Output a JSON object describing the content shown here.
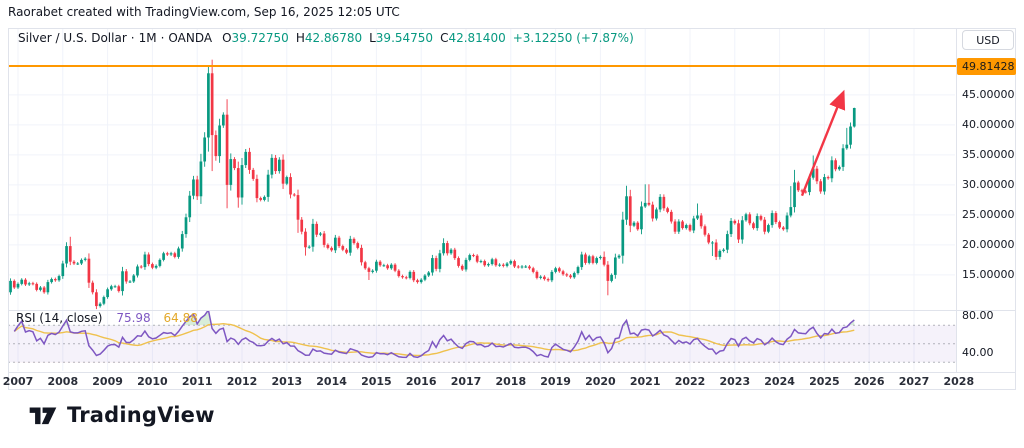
{
  "attribution": "Raorabet created with TradingView.com, Sep 16, 2025 12:05 UTC",
  "header": {
    "symbol": "Silver / U.S. Dollar",
    "dot": "·",
    "interval": "1M",
    "exchange": "OANDA",
    "labels": {
      "o": "O",
      "h": "H",
      "l": "L",
      "c": "C"
    },
    "o": "39.72750",
    "h": "42.86780",
    "l": "39.54750",
    "c": "42.81400",
    "change": "+3.12250 (+7.87%)"
  },
  "price_axis": {
    "currency": "USD",
    "price_line_label": "49.81428",
    "ticks": [
      {
        "label": "45.00000",
        "value": 45
      },
      {
        "label": "40.00000",
        "value": 40
      },
      {
        "label": "35.00000",
        "value": 35
      },
      {
        "label": "30.00000",
        "value": 30
      },
      {
        "label": "25.00000",
        "value": 25
      },
      {
        "label": "20.00000",
        "value": 20
      },
      {
        "label": "15.00000",
        "value": 15
      }
    ]
  },
  "rsi_pane": {
    "title": "RSI (14, close)",
    "value": "75.98",
    "ma_value": "64.88",
    "ticks": [
      {
        "label": "80.00",
        "value": 80
      },
      {
        "label": "40.00",
        "value": 40
      }
    ],
    "bands": {
      "upper": 70,
      "middle": 50,
      "lower": 30
    }
  },
  "time_axis": {
    "years": [
      "2007",
      "2008",
      "2009",
      "2010",
      "2011",
      "2012",
      "2013",
      "2014",
      "2015",
      "2016",
      "2017",
      "2018",
      "2019",
      "2020",
      "2021",
      "2022",
      "2023",
      "2024",
      "2025",
      "2026",
      "2027",
      "2028"
    ]
  },
  "logo_text": "TradingView",
  "colors": {
    "up": "#089981",
    "down": "#f23645",
    "price_line": "#ff9800",
    "rsi_line": "#7e57c2",
    "rsi_ma_line": "#efc14d",
    "band_fill": "rgba(126,87,194,0.08)",
    "band_dash": "rgba(120,123,134,0.55)",
    "overbought_fill": "rgba(76,175,80,0.22)",
    "oversold_fill": "rgba(242,54,69,0.18)",
    "grid": "#f0f3fa",
    "frame": "#e0e3eb",
    "arrow": "#f23645"
  },
  "chart_data": {
    "type": "candlestick",
    "title": "Silver / U.S. Dollar, 1M, OANDA",
    "timeframe": "1M",
    "x_range": [
      "2006-10",
      "2028-12"
    ],
    "price_ylim": [
      9,
      56
    ],
    "rsi_ylim": [
      20,
      87
    ],
    "price_line_value": 49.81428,
    "series_start": "2006-10",
    "monthly_closes": [
      12.1,
      14.0,
      12.9,
      13.5,
      14.2,
      13.4,
      13.6,
      13.5,
      12.5,
      12.9,
      12.1,
      13.8,
      14.3,
      14.1,
      14.8,
      16.9,
      19.8,
      17.2,
      16.9,
      16.9,
      17.5,
      17.7,
      13.7,
      12.1,
      9.8,
      10.2,
      11.3,
      12.6,
      13.1,
      13.1,
      12.3,
      15.6,
      13.9,
      13.9,
      14.9,
      16.4,
      16.3,
      18.4,
      16.8,
      16.2,
      16.5,
      17.5,
      18.6,
      18.4,
      18.6,
      18.0,
      19.4,
      21.8,
      24.6,
      28.2,
      30.9,
      28.1,
      33.9,
      37.9,
      48.6,
      38.3,
      34.8,
      39.9,
      41.7,
      30.0,
      34.3,
      32.8,
      27.9,
      33.3,
      35.5,
      32.5,
      31.0,
      27.8,
      27.5,
      28.0,
      31.7,
      34.5,
      32.3,
      34.2,
      30.2,
      31.3,
      28.4,
      28.3,
      24.2,
      22.2,
      19.6,
      19.7,
      23.5,
      21.7,
      21.9,
      20.0,
      19.5,
      19.1,
      21.2,
      19.8,
      19.2,
      18.7,
      21.0,
      20.3,
      19.5,
      17.1,
      16.1,
      15.5,
      15.7,
      17.2,
      16.6,
      16.6,
      16.1,
      16.7,
      15.7,
      14.8,
      14.6,
      14.5,
      15.5,
      14.1,
      13.8,
      14.2,
      14.9,
      15.4,
      17.8,
      16.0,
      18.6,
      20.3,
      18.6,
      19.2,
      17.8,
      16.5,
      15.9,
      17.5,
      18.3,
      18.2,
      17.2,
      17.3,
      16.6,
      16.8,
      17.6,
      16.6,
      16.7,
      16.5,
      16.9,
      17.3,
      16.4,
      16.3,
      16.4,
      16.4,
      16.1,
      15.5,
      14.5,
      14.7,
      14.3,
      14.1,
      15.5,
      16.1,
      15.6,
      15.1,
      14.9,
      14.6,
      15.3,
      16.3,
      18.4,
      17.0,
      18.1,
      17.0,
      17.8,
      18.0,
      16.7,
      14.0,
      15.0,
      17.9,
      18.2,
      24.2,
      28.1,
      23.2,
      23.7,
      22.6,
      26.4,
      27.0,
      26.7,
      24.4,
      25.9,
      28.0,
      26.1,
      25.5,
      23.9,
      22.2,
      23.9,
      22.8,
      23.3,
      22.4,
      24.4,
      24.9,
      23.1,
      21.7,
      20.4,
      20.4,
      18.0,
      19.0,
      19.2,
      21.8,
      24.0,
      23.6,
      20.9,
      24.1,
      25.1,
      23.6,
      22.8,
      24.8,
      24.2,
      22.2,
      23.3,
      25.3,
      23.8,
      22.9,
      22.6,
      24.9,
      26.3,
      30.4,
      29.1,
      28.9,
      28.8,
      31.2,
      32.7,
      30.6,
      28.9,
      31.3,
      31.1,
      34.1,
      32.6,
      33.0,
      36.1,
      36.7,
      39.73,
      42.814
    ],
    "wick_overrides": {
      "2008-03": {
        "h": 21.35
      },
      "2008-10": {
        "l": 9.3
      },
      "2011-04": {
        "h": 49.81
      },
      "2011-05": {
        "l": 32.3
      },
      "2011-09": {
        "l": 26.1
      },
      "2011-12": {
        "l": 26.2
      },
      "2013-04": {
        "l": 22.0
      },
      "2013-06": {
        "l": 18.2
      },
      "2014-11": {
        "l": 14.15
      },
      "2016-07": {
        "h": 21.1
      },
      "2020-02": {
        "h": 18.9
      },
      "2020-03": {
        "l": 11.6
      },
      "2020-08": {
        "h": 29.86
      },
      "2021-01": {
        "h": 30.1
      },
      "2021-02": {
        "h": 30.1
      },
      "2022-03": {
        "h": 26.9
      },
      "2022-07": {
        "l": 18.15
      },
      "2022-09": {
        "l": 17.56
      },
      "2024-04": {
        "h": 29.8
      },
      "2024-05": {
        "h": 32.5
      },
      "2024-10": {
        "h": 34.9
      },
      "2025-07": {
        "h": 39.5
      }
    },
    "last_candle": {
      "o": 39.7275,
      "h": 42.8678,
      "l": 39.5475,
      "c": 42.814
    },
    "indicator": {
      "name": "RSI",
      "length": 14,
      "source": "close",
      "current": 75.98,
      "ma_current": 64.88
    },
    "annotations": {
      "trend_arrow": {
        "from_month": "2024-07",
        "from_price": 28.2,
        "to_month": "2025-06",
        "to_price": 45.3
      }
    }
  }
}
